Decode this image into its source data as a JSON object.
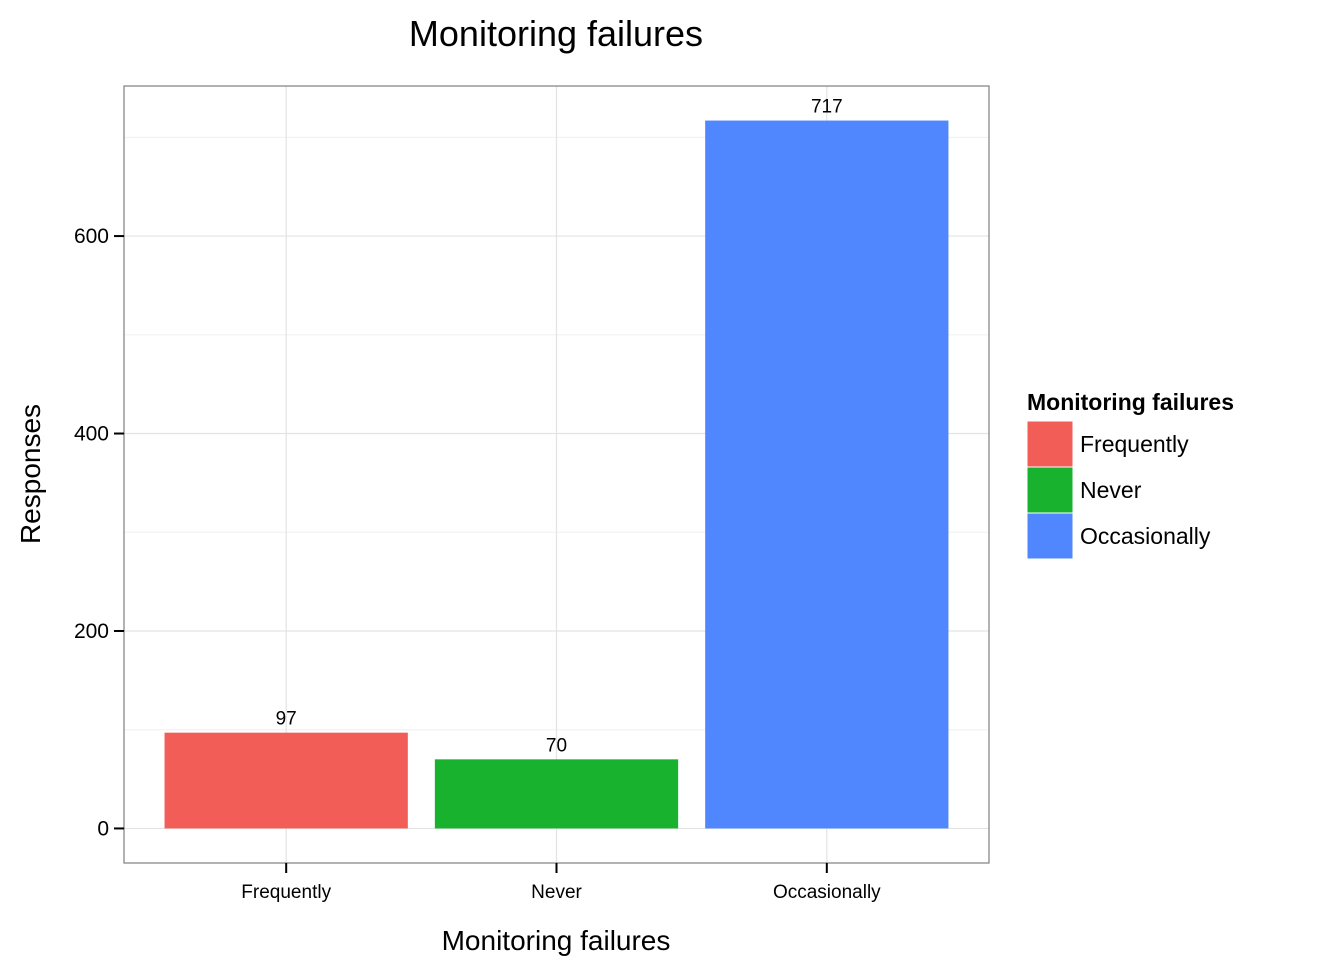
{
  "chart_data": {
    "type": "bar",
    "title": "Monitoring failures",
    "xlabel": "Monitoring failures",
    "ylabel": "Responses",
    "categories": [
      "Frequently",
      "Never",
      "Occasionally"
    ],
    "values": [
      97,
      70,
      717
    ],
    "colors": [
      "#F25E57",
      "#18B22F",
      "#5087FE"
    ],
    "ylim": [
      -35,
      752
    ],
    "yticks": [
      0,
      200,
      400,
      600
    ],
    "grid": true,
    "legend": {
      "title": "Monitoring failures",
      "position": "right",
      "items": [
        {
          "label": "Frequently",
          "color": "#F25E57"
        },
        {
          "label": "Never",
          "color": "#18B22F"
        },
        {
          "label": "Occasionally",
          "color": "#5087FE"
        }
      ]
    }
  }
}
